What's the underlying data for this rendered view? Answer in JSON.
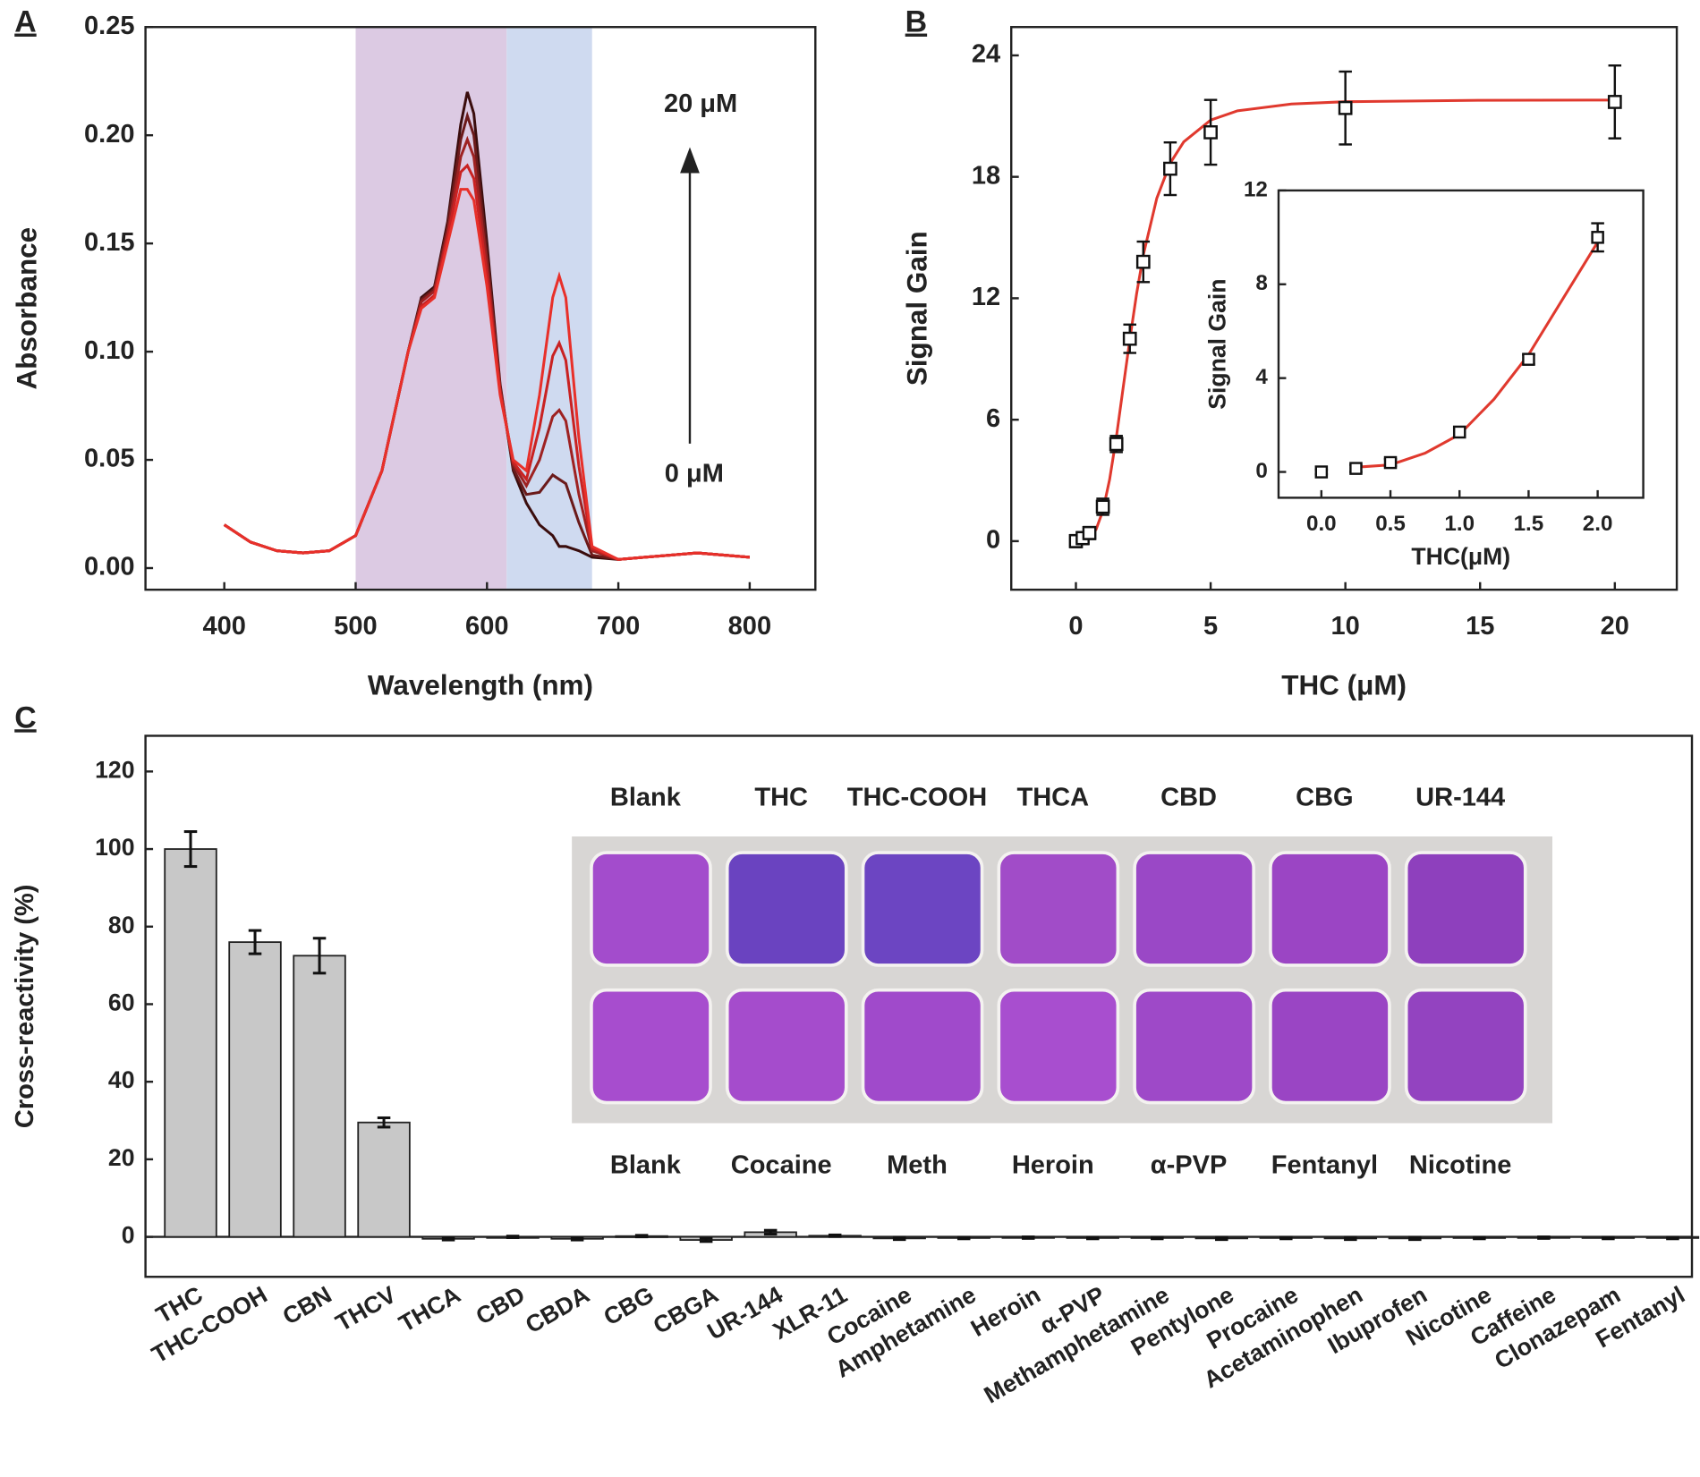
{
  "chart_data": [
    {
      "type": "line",
      "panel_label": "A",
      "x_label": "Wavelength (nm)",
      "y_label": "Absorbance",
      "x": [
        400,
        420,
        440,
        460,
        480,
        500,
        520,
        540,
        550,
        560,
        570,
        580,
        585,
        590,
        600,
        610,
        620,
        630,
        640,
        650,
        655,
        660,
        670,
        680,
        700,
        720,
        740,
        760,
        800
      ],
      "series": [
        {
          "color": "#3a0d0d",
          "values": [
            0.02,
            0.012,
            0.008,
            0.007,
            0.008,
            0.015,
            0.045,
            0.1,
            0.125,
            0.13,
            0.16,
            0.205,
            0.22,
            0.21,
            0.15,
            0.085,
            0.045,
            0.03,
            0.02,
            0.015,
            0.01,
            0.01,
            0.008,
            0.005,
            0.004,
            0.005,
            0.006,
            0.007,
            0.005
          ]
        },
        {
          "color": "#6b1a1a",
          "values": [
            0.02,
            0.012,
            0.008,
            0.007,
            0.008,
            0.015,
            0.045,
            0.1,
            0.124,
            0.129,
            0.158,
            0.198,
            0.209,
            0.2,
            0.145,
            0.084,
            0.046,
            0.034,
            0.035,
            0.043,
            0.041,
            0.039,
            0.021,
            0.006,
            0.004,
            0.005,
            0.006,
            0.007,
            0.005
          ]
        },
        {
          "color": "#9e2222",
          "values": [
            0.02,
            0.012,
            0.008,
            0.007,
            0.008,
            0.015,
            0.045,
            0.1,
            0.123,
            0.128,
            0.155,
            0.19,
            0.198,
            0.19,
            0.14,
            0.083,
            0.048,
            0.038,
            0.05,
            0.07,
            0.073,
            0.068,
            0.034,
            0.008,
            0.004,
            0.005,
            0.006,
            0.007,
            0.005
          ]
        },
        {
          "color": "#c92222",
          "values": [
            0.02,
            0.012,
            0.008,
            0.007,
            0.008,
            0.015,
            0.045,
            0.1,
            0.121,
            0.126,
            0.153,
            0.183,
            0.186,
            0.18,
            0.135,
            0.081,
            0.049,
            0.041,
            0.065,
            0.098,
            0.104,
            0.096,
            0.047,
            0.009,
            0.004,
            0.005,
            0.006,
            0.007,
            0.005
          ]
        },
        {
          "color": "#e8302a",
          "values": [
            0.02,
            0.012,
            0.008,
            0.007,
            0.008,
            0.015,
            0.045,
            0.1,
            0.12,
            0.125,
            0.15,
            0.175,
            0.175,
            0.17,
            0.13,
            0.08,
            0.05,
            0.045,
            0.08,
            0.125,
            0.135,
            0.125,
            0.06,
            0.01,
            0.004,
            0.005,
            0.006,
            0.007,
            0.005
          ]
        }
      ],
      "xlim": [
        340,
        850
      ],
      "ylim": [
        -0.01,
        0.25
      ],
      "xticks": [
        400,
        500,
        600,
        700,
        800
      ],
      "yticks": [
        {
          "value": 0,
          "label": "0.00"
        },
        {
          "value": 0.05,
          "label": "0.05"
        },
        {
          "value": 0.1,
          "label": "0.10"
        },
        {
          "value": 0.15,
          "label": "0.15"
        },
        {
          "value": 0.2,
          "label": "0.20"
        },
        {
          "value": 0.25,
          "label": "0.25"
        }
      ],
      "shaded_regions": [
        {
          "range": [
            500,
            615
          ],
          "color": "#dccae3"
        },
        {
          "range": [
            615,
            680
          ],
          "color": "#cfdaf0"
        }
      ],
      "annotations": [
        "20 μM",
        "0 μM"
      ]
    },
    {
      "type": "scatter",
      "panel_label": "B",
      "x_label": "THC (μM)",
      "y_label": "Signal Gain",
      "x": [
        0,
        0.25,
        0.5,
        1,
        1.5,
        2,
        2.5,
        3.5,
        5,
        10,
        20
      ],
      "values": [
        0,
        0.15,
        0.4,
        1.7,
        4.8,
        10,
        13.8,
        18.4,
        20.2,
        21.4,
        21.7
      ],
      "errors": [
        0.3,
        0.3,
        0.3,
        0.4,
        0.4,
        0.7,
        1.0,
        1.3,
        1.6,
        1.8,
        1.8
      ],
      "marker_color": "#111111",
      "fit": {
        "color": "#e0392e",
        "x": [
          0,
          0.25,
          0.5,
          0.75,
          1,
          1.25,
          1.5,
          1.75,
          2,
          2.25,
          2.5,
          3,
          3.5,
          4,
          5,
          6,
          8,
          10,
          15,
          20
        ],
        "values": [
          0,
          0.01,
          0.14,
          0.58,
          1.51,
          3.05,
          5.13,
          7.54,
          9.97,
          12.21,
          14.13,
          16.94,
          18.68,
          19.73,
          20.8,
          21.26,
          21.6,
          21.71,
          21.78,
          21.79
        ]
      },
      "xlim": [
        -2.4,
        22.3
      ],
      "ylim": [
        -2.4,
        25.4
      ],
      "xticks": [
        0,
        5,
        10,
        15,
        20
      ],
      "yticks": [
        0,
        6,
        12,
        18,
        24
      ]
    },
    {
      "type": "scatter",
      "x_label": "THC(μM)",
      "y_label": "Signal Gain",
      "x": [
        0,
        0.25,
        0.5,
        1,
        1.5,
        2
      ],
      "values": [
        0,
        0.15,
        0.4,
        1.7,
        4.8,
        10
      ],
      "errors": [
        0.1,
        0.15,
        0.15,
        0.2,
        0.2,
        0.6
      ],
      "marker_color": "#111111",
      "fit": {
        "color": "#e0392e",
        "x": [
          0.25,
          0.5,
          0.75,
          1,
          1.25,
          1.5,
          1.75,
          2
        ],
        "values": [
          0.2,
          0.3,
          0.8,
          1.6,
          3.1,
          5.0,
          7.4,
          9.8
        ]
      },
      "xlim": [
        -0.31,
        2.33
      ],
      "ylim": [
        -1.1,
        12
      ],
      "xticks": [
        {
          "value": 0,
          "label": "0.0"
        },
        {
          "value": 0.5,
          "label": "0.5"
        },
        {
          "value": 1,
          "label": "1.0"
        },
        {
          "value": 1.5,
          "label": "1.5"
        },
        {
          "value": 2,
          "label": "2.0"
        }
      ],
      "yticks": [
        0,
        4,
        8,
        12
      ]
    },
    {
      "type": "bar",
      "panel_label": "C",
      "y_label": "Cross-reactivity (%)",
      "categories": [
        "THC",
        "THC-COOH",
        "CBN",
        "THCV",
        "THCA",
        "CBD",
        "CBDA",
        "CBG",
        "CBGA",
        "UR-144",
        "XLR-11",
        "Cocaine",
        "Amphetamine",
        "Heroin",
        "α-PVP",
        "Methamphetamine",
        "Pentylone",
        "Procaine",
        "Acetaminophen",
        "Ibuprofen",
        "Nicotine",
        "Caffeine",
        "Clonazepam",
        "Fentanyl"
      ],
      "values": [
        100,
        76,
        72.5,
        29.5,
        -0.5,
        0,
        -0.5,
        0.2,
        -0.8,
        1.2,
        0.3,
        -0.4,
        -0.3,
        -0.2,
        -0.3,
        -0.3,
        -0.4,
        -0.3,
        -0.4,
        -0.4,
        -0.3,
        -0.2,
        -0.3,
        -0.3
      ],
      "errors": [
        4.5,
        3,
        4.5,
        1.2,
        0.3,
        0.2,
        0.3,
        0.2,
        0.4,
        0.5,
        0.2,
        0.3,
        0.2,
        0.2,
        0.2,
        0.2,
        0.3,
        0.2,
        0.3,
        0.3,
        0.2,
        0.2,
        0.2,
        0.2
      ],
      "color": "#c8c8c8",
      "ylim": [
        -10.3,
        129.2
      ],
      "yticks": [
        0,
        20,
        40,
        60,
        80,
        100,
        120
      ],
      "photo": {
        "background": "#d8d6d4",
        "top_labels": [
          "Blank",
          "THC",
          "THC-COOH",
          "THCA",
          "CBD",
          "CBG",
          "UR-144"
        ],
        "top_colors": [
          "#a34ccc",
          "#6a43c0",
          "#6c45c2",
          "#a14cc8",
          "#9a48c6",
          "#9b45c4",
          "#8e40bd"
        ],
        "bottom_labels": [
          "Blank",
          "Cocaine",
          "Meth",
          "Heroin",
          "α-PVP",
          "Fentanyl",
          "Nicotine"
        ],
        "bottom_colors": [
          "#a74dce",
          "#a54ccc",
          "#a04acb",
          "#a84ecf",
          "#9e49c8",
          "#9a45c4",
          "#9343c0"
        ]
      }
    }
  ]
}
